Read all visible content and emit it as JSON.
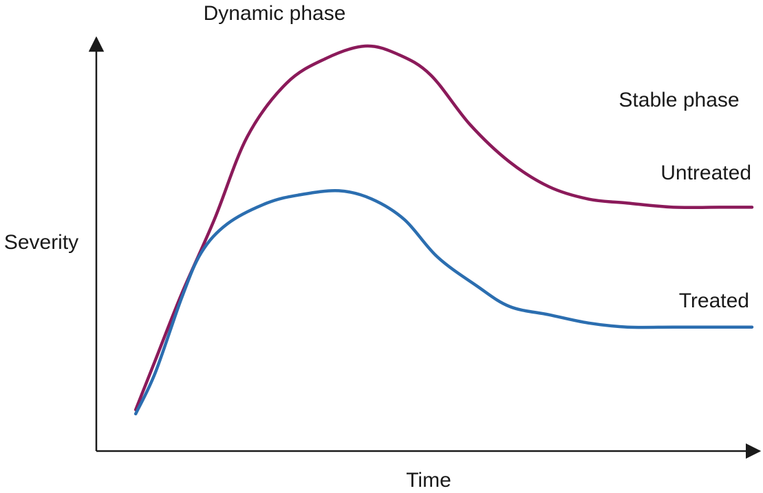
{
  "chart_data": {
    "type": "line",
    "title": "",
    "xlabel": "Time",
    "ylabel": "Severity",
    "xlim": [
      0,
      100
    ],
    "ylim": [
      0,
      100
    ],
    "grid": false,
    "annotations": [
      {
        "name": "dynamic-phase-label",
        "text": "Dynamic phase"
      },
      {
        "name": "stable-phase-label",
        "text": "Stable phase"
      }
    ],
    "series": [
      {
        "name": "Untreated",
        "color": "#8b1a5a",
        "x": [
          6,
          9,
          13,
          18,
          23,
          29,
          35,
          41,
          46,
          51,
          57,
          63,
          69,
          75,
          81,
          88,
          95,
          100
        ],
        "y": [
          10,
          22,
          38,
          56,
          76,
          89,
          95,
          98,
          96,
          91,
          79,
          70,
          64,
          61,
          60,
          59,
          59,
          59
        ]
      },
      {
        "name": "Treated",
        "color": "#2b6eb0",
        "x": [
          6,
          9,
          13,
          16,
          20,
          26,
          31,
          37,
          42,
          47,
          52,
          58,
          63,
          69,
          75,
          81,
          88,
          95,
          100
        ],
        "y": [
          9,
          19,
          37,
          48,
          55,
          60,
          62,
          63,
          61,
          56,
          47,
          40,
          35,
          33,
          31,
          30,
          30,
          30,
          30
        ]
      }
    ]
  }
}
